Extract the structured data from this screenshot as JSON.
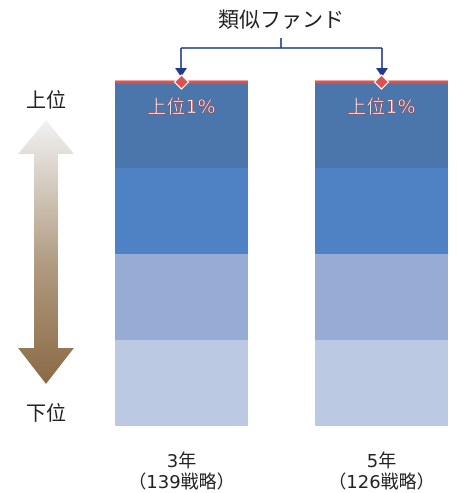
{
  "chart_data": {
    "type": "bar",
    "title": "類似ファンド",
    "axis_top_label": "上位",
    "axis_bottom_label": "下位",
    "categories": [
      {
        "line1": "3年",
        "line2": "（139戦略）"
      },
      {
        "line1": "5年",
        "line2": "（126戦略）"
      }
    ],
    "quartiles": [
      {
        "name": "Q1",
        "color": "#4a76ac"
      },
      {
        "name": "Q2",
        "color": "#4f82c4"
      },
      {
        "name": "Q3",
        "color": "#96acd4"
      },
      {
        "name": "Q4",
        "color": "#bcc9e3"
      }
    ],
    "marker": {
      "label": "上位1%",
      "percentile": [
        1,
        1
      ],
      "color": "#d9534f"
    },
    "ylim": [
      0,
      100
    ]
  }
}
